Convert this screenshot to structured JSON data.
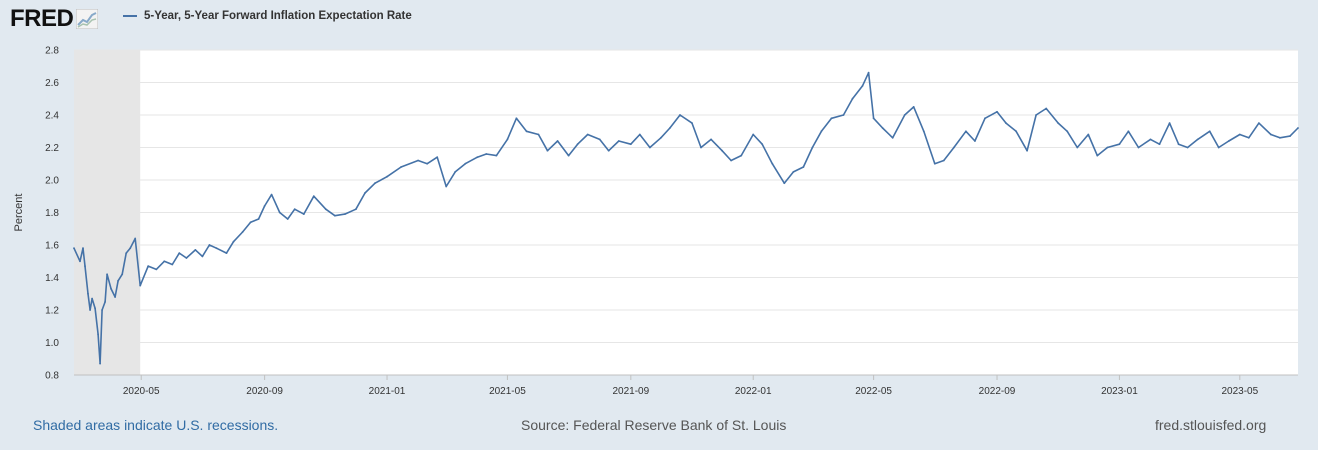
{
  "header": {
    "logo_text": "FRED",
    "logo_icon": "trend-chart-icon"
  },
  "colors": {
    "series": "#4572a7",
    "recession": "#e6e6e6",
    "plot_bg": "#ffffff",
    "page_bg": "#e1e9f0",
    "grid": "#e6e6e6",
    "link": "#316ca4"
  },
  "footer": {
    "recession_note": "Shaded areas indicate U.S. recessions.",
    "source": "Source: Federal Reserve Bank of St. Louis",
    "site": "fred.stlouisfed.org"
  },
  "chart_data": {
    "type": "line",
    "ylabel": "Percent",
    "ylim": [
      0.8,
      2.8
    ],
    "yticks": [
      "0.8",
      "1.0",
      "1.2",
      "1.4",
      "1.6",
      "1.8",
      "2.0",
      "2.2",
      "2.4",
      "2.6",
      "2.8"
    ],
    "xlim": [
      "2020-02-24",
      "2023-06-28"
    ],
    "xticks": [
      "2020-05",
      "2020-09",
      "2021-01",
      "2021-05",
      "2021-09",
      "2022-01",
      "2022-05",
      "2022-09",
      "2023-01",
      "2023-05"
    ],
    "grid": true,
    "recessions": [
      [
        "2020-02-24",
        "2020-04-30"
      ]
    ],
    "series": [
      {
        "name": "5-Year, 5-Year Forward Inflation Expectation Rate",
        "x": [
          "2020-02-24",
          "2020-03-01",
          "2020-03-04",
          "2020-03-06",
          "2020-03-09",
          "2020-03-11",
          "2020-03-13",
          "2020-03-16",
          "2020-03-19",
          "2020-03-21",
          "2020-03-23",
          "2020-03-26",
          "2020-03-28",
          "2020-04-01",
          "2020-04-05",
          "2020-04-08",
          "2020-04-12",
          "2020-04-16",
          "2020-04-20",
          "2020-04-25",
          "2020-04-30",
          "2020-05-08",
          "2020-05-16",
          "2020-05-24",
          "2020-06-01",
          "2020-06-08",
          "2020-06-15",
          "2020-06-24",
          "2020-07-01",
          "2020-07-08",
          "2020-07-15",
          "2020-07-25",
          "2020-08-01",
          "2020-08-10",
          "2020-08-18",
          "2020-08-26",
          "2020-09-01",
          "2020-09-08",
          "2020-09-16",
          "2020-09-24",
          "2020-10-01",
          "2020-10-10",
          "2020-10-20",
          "2020-11-01",
          "2020-11-10",
          "2020-11-20",
          "2020-12-01",
          "2020-12-10",
          "2020-12-20",
          "2021-01-01",
          "2021-01-15",
          "2021-02-01",
          "2021-02-10",
          "2021-02-20",
          "2021-03-01",
          "2021-03-10",
          "2021-03-20",
          "2021-04-01",
          "2021-04-10",
          "2021-04-20",
          "2021-05-01",
          "2021-05-10",
          "2021-05-20",
          "2021-06-01",
          "2021-06-10",
          "2021-06-20",
          "2021-07-01",
          "2021-07-10",
          "2021-07-20",
          "2021-08-01",
          "2021-08-10",
          "2021-08-20",
          "2021-09-01",
          "2021-09-10",
          "2021-09-20",
          "2021-10-01",
          "2021-10-10",
          "2021-10-20",
          "2021-11-01",
          "2021-11-10",
          "2021-11-20",
          "2021-12-01",
          "2021-12-10",
          "2021-12-20",
          "2022-01-01",
          "2022-01-10",
          "2022-01-20",
          "2022-02-01",
          "2022-02-10",
          "2022-02-20",
          "2022-03-01",
          "2022-03-10",
          "2022-03-20",
          "2022-04-01",
          "2022-04-10",
          "2022-04-20",
          "2022-04-26",
          "2022-05-01",
          "2022-05-10",
          "2022-05-20",
          "2022-06-01",
          "2022-06-10",
          "2022-06-20",
          "2022-07-01",
          "2022-07-10",
          "2022-07-20",
          "2022-08-01",
          "2022-08-10",
          "2022-08-20",
          "2022-09-01",
          "2022-09-10",
          "2022-09-20",
          "2022-10-01",
          "2022-10-10",
          "2022-10-20",
          "2022-11-01",
          "2022-11-10",
          "2022-11-20",
          "2022-12-01",
          "2022-12-10",
          "2022-12-20",
          "2023-01-01",
          "2023-01-10",
          "2023-01-20",
          "2023-02-01",
          "2023-02-10",
          "2023-02-20",
          "2023-03-01",
          "2023-03-10",
          "2023-03-20",
          "2023-04-01",
          "2023-04-10",
          "2023-04-20",
          "2023-05-01",
          "2023-05-10",
          "2023-05-20",
          "2023-06-01",
          "2023-06-10",
          "2023-06-20",
          "2023-06-28"
        ],
        "values": [
          1.58,
          1.5,
          1.58,
          1.47,
          1.3,
          1.2,
          1.27,
          1.21,
          1.05,
          0.87,
          1.2,
          1.25,
          1.42,
          1.33,
          1.28,
          1.38,
          1.42,
          1.55,
          1.58,
          1.64,
          1.35,
          1.47,
          1.45,
          1.5,
          1.48,
          1.55,
          1.52,
          1.57,
          1.53,
          1.6,
          1.58,
          1.55,
          1.62,
          1.68,
          1.74,
          1.76,
          1.84,
          1.91,
          1.8,
          1.76,
          1.82,
          1.79,
          1.9,
          1.82,
          1.78,
          1.79,
          1.82,
          1.92,
          1.98,
          2.02,
          2.08,
          2.12,
          2.1,
          2.14,
          1.96,
          2.05,
          2.1,
          2.14,
          2.16,
          2.15,
          2.25,
          2.38,
          2.3,
          2.28,
          2.18,
          2.24,
          2.15,
          2.22,
          2.28,
          2.25,
          2.18,
          2.24,
          2.22,
          2.28,
          2.2,
          2.26,
          2.32,
          2.4,
          2.35,
          2.2,
          2.25,
          2.18,
          2.12,
          2.15,
          2.28,
          2.22,
          2.1,
          1.98,
          2.05,
          2.08,
          2.2,
          2.3,
          2.38,
          2.4,
          2.5,
          2.58,
          2.66,
          2.38,
          2.32,
          2.26,
          2.4,
          2.45,
          2.3,
          2.1,
          2.12,
          2.2,
          2.3,
          2.24,
          2.38,
          2.42,
          2.35,
          2.3,
          2.18,
          2.4,
          2.44,
          2.35,
          2.3,
          2.2,
          2.28,
          2.15,
          2.2,
          2.22,
          2.3,
          2.2,
          2.25,
          2.22,
          2.35,
          2.22,
          2.2,
          2.25,
          2.3,
          2.2,
          2.24,
          2.28,
          2.26,
          2.35,
          2.28,
          2.26,
          2.27,
          2.32
        ]
      }
    ]
  }
}
